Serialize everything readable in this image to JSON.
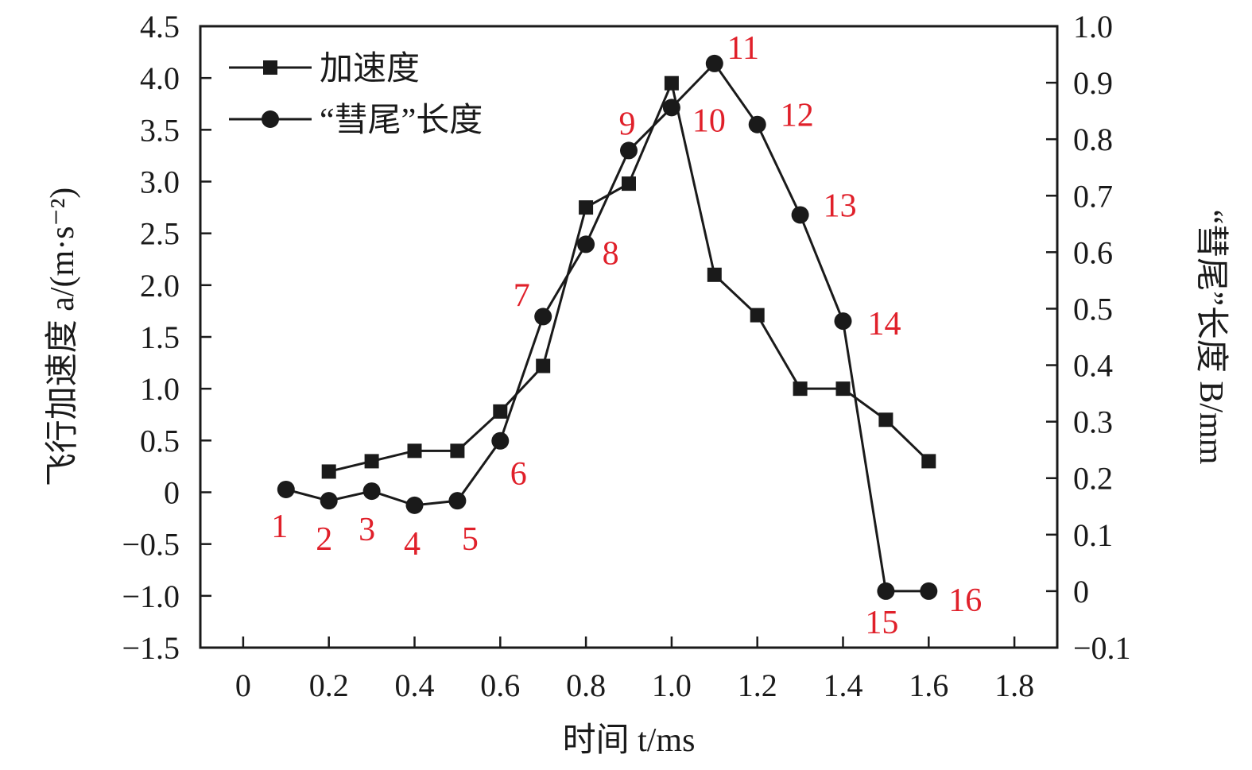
{
  "chart_data": {
    "type": "line",
    "xlabel": "时间 t/ms",
    "ylabel_left": "飞行加速度 a/(m·s⁻²)",
    "ylabel_right": "“彗尾”长度 B/mm",
    "xlim": [
      -0.1,
      1.9
    ],
    "ylim_left": [
      -1.5,
      4.5
    ],
    "ylim_right": [
      -0.1,
      1.0
    ],
    "x_ticks": [
      0,
      0.2,
      0.4,
      0.6,
      0.8,
      1.0,
      1.2,
      1.4,
      1.6,
      1.8
    ],
    "x_tick_labels": [
      "0",
      "0.2",
      "0.4",
      "0.6",
      "0.8",
      "1.0",
      "1.2",
      "1.4",
      "1.6",
      "1.8"
    ],
    "y_left_ticks": [
      -1.5,
      -1.0,
      -0.5,
      0,
      0.5,
      1.0,
      1.5,
      2.0,
      2.5,
      3.0,
      3.5,
      4.0,
      4.5
    ],
    "y_left_tick_labels": [
      "−1.5",
      "−1.0",
      "−0.5",
      "0",
      "0.5",
      "1.0",
      "1.5",
      "2.0",
      "2.5",
      "3.0",
      "3.5",
      "4.0",
      "4.5"
    ],
    "y_right_ticks": [
      -0.1,
      0,
      0.1,
      0.2,
      0.3,
      0.4,
      0.5,
      0.6,
      0.7,
      0.8,
      0.9,
      1.0
    ],
    "y_right_tick_labels": [
      "−0.1",
      "0",
      "0.1",
      "0.2",
      "0.3",
      "0.4",
      "0.5",
      "0.6",
      "0.7",
      "0.8",
      "0.9",
      "1.0"
    ],
    "legend_position": "top-left",
    "point_label_color": "#e0202a",
    "line_color": "#1a1a1a",
    "series": [
      {
        "name": "加速度",
        "axis": "left",
        "marker": "square",
        "x": [
          0.2,
          0.3,
          0.4,
          0.5,
          0.6,
          0.7,
          0.8,
          0.9,
          1.0,
          1.1,
          1.2,
          1.3,
          1.4,
          1.5,
          1.6
        ],
        "y": [
          0.2,
          0.3,
          0.4,
          0.4,
          0.78,
          1.22,
          2.75,
          2.98,
          3.95,
          2.1,
          1.71,
          1.0,
          1.0,
          0.7,
          0.3
        ]
      },
      {
        "name": "“彗尾”长度",
        "axis": "right",
        "marker": "circle",
        "x": [
          0.1,
          0.2,
          0.3,
          0.4,
          0.5,
          0.6,
          0.7,
          0.8,
          0.9,
          1.0,
          1.1,
          1.2,
          1.3,
          1.4,
          1.5,
          1.6
        ],
        "y": [
          0.18,
          0.16,
          0.177,
          0.152,
          0.16,
          0.266,
          0.486,
          0.614,
          0.78,
          0.856,
          0.934,
          0.826,
          0.666,
          0.478,
          0.0,
          0.0
        ],
        "point_labels": [
          "1",
          "2",
          "3",
          "4",
          "5",
          "6",
          "7",
          "8",
          "9",
          "10",
          "11",
          "12",
          "13",
          "14",
          "15",
          "16"
        ]
      }
    ]
  }
}
